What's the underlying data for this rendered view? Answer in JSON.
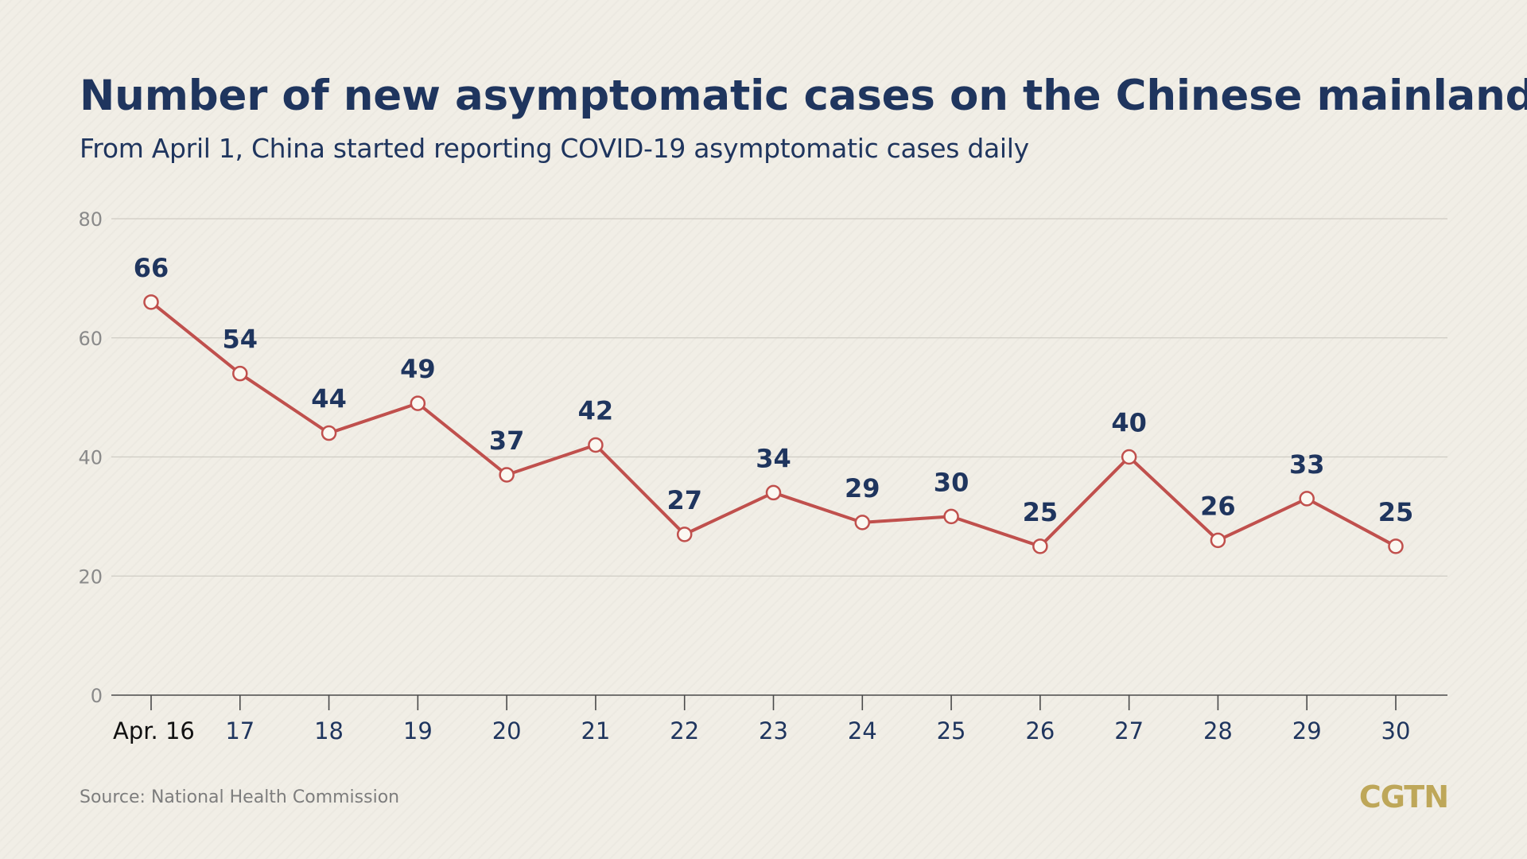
{
  "chart_data": {
    "type": "line",
    "title": "Number of new asymptomatic cases on the Chinese mainland",
    "subtitle": "From April 1, China started reporting COVID-19 asymptomatic cases daily",
    "categories": [
      "Apr. 16",
      "17",
      "18",
      "19",
      "20",
      "21",
      "22",
      "23",
      "24",
      "25",
      "26",
      "27",
      "28",
      "29",
      "30"
    ],
    "values": [
      66,
      54,
      44,
      49,
      37,
      42,
      27,
      34,
      29,
      30,
      25,
      40,
      26,
      33,
      25
    ],
    "data_labels": [
      "66",
      "54",
      "44",
      "49",
      "37",
      "42",
      "27",
      "34",
      "29",
      "30",
      "25",
      "40",
      "26",
      "33",
      "25"
    ],
    "y_ticks": [
      0,
      20,
      40,
      60,
      80
    ],
    "y_tick_labels": [
      "0",
      "20",
      "40",
      "60",
      "80"
    ],
    "ylim": [
      0,
      80
    ],
    "xlabel": "",
    "ylabel": "",
    "grid": true,
    "line_color": "#c0504d",
    "label_color": "#1f355e",
    "source": "Source: National Health Commission"
  },
  "brand": {
    "logo_text": "CGTN",
    "logo_color": "#bea759"
  }
}
